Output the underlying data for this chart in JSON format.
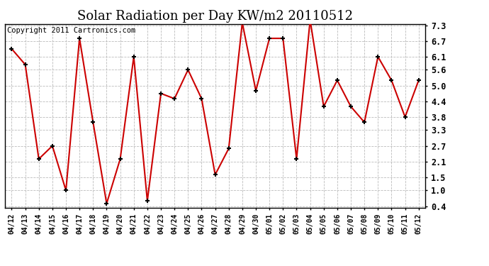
{
  "title": "Solar Radiation per Day KW/m2 20110512",
  "copyright": "Copyright 2011 Cartronics.com",
  "dates": [
    "04/12",
    "04/13",
    "04/14",
    "04/15",
    "04/16",
    "04/17",
    "04/18",
    "04/19",
    "04/20",
    "04/21",
    "04/22",
    "04/23",
    "04/24",
    "04/25",
    "04/26",
    "04/27",
    "04/28",
    "04/29",
    "04/30",
    "05/01",
    "05/02",
    "05/03",
    "05/04",
    "05/05",
    "05/06",
    "05/07",
    "05/08",
    "05/09",
    "05/10",
    "05/11",
    "05/12"
  ],
  "values": [
    6.4,
    5.8,
    2.2,
    2.7,
    1.0,
    6.8,
    3.6,
    0.5,
    2.2,
    6.1,
    0.6,
    4.7,
    4.5,
    5.6,
    4.5,
    1.6,
    2.6,
    7.4,
    4.8,
    6.8,
    6.8,
    2.2,
    7.5,
    4.2,
    5.2,
    4.2,
    3.6,
    6.1,
    5.2,
    3.8,
    5.2
  ],
  "line_color": "#cc0000",
  "marker_color": "#000000",
  "bg_color": "#ffffff",
  "grid_color": "#bbbbbb",
  "yticks": [
    0.4,
    1.0,
    1.5,
    2.1,
    2.7,
    3.3,
    3.8,
    4.4,
    5.0,
    5.6,
    6.1,
    6.7,
    7.3
  ],
  "ymin": 0.4,
  "ymax": 7.3,
  "title_fontsize": 13,
  "copyright_fontsize": 7.5
}
